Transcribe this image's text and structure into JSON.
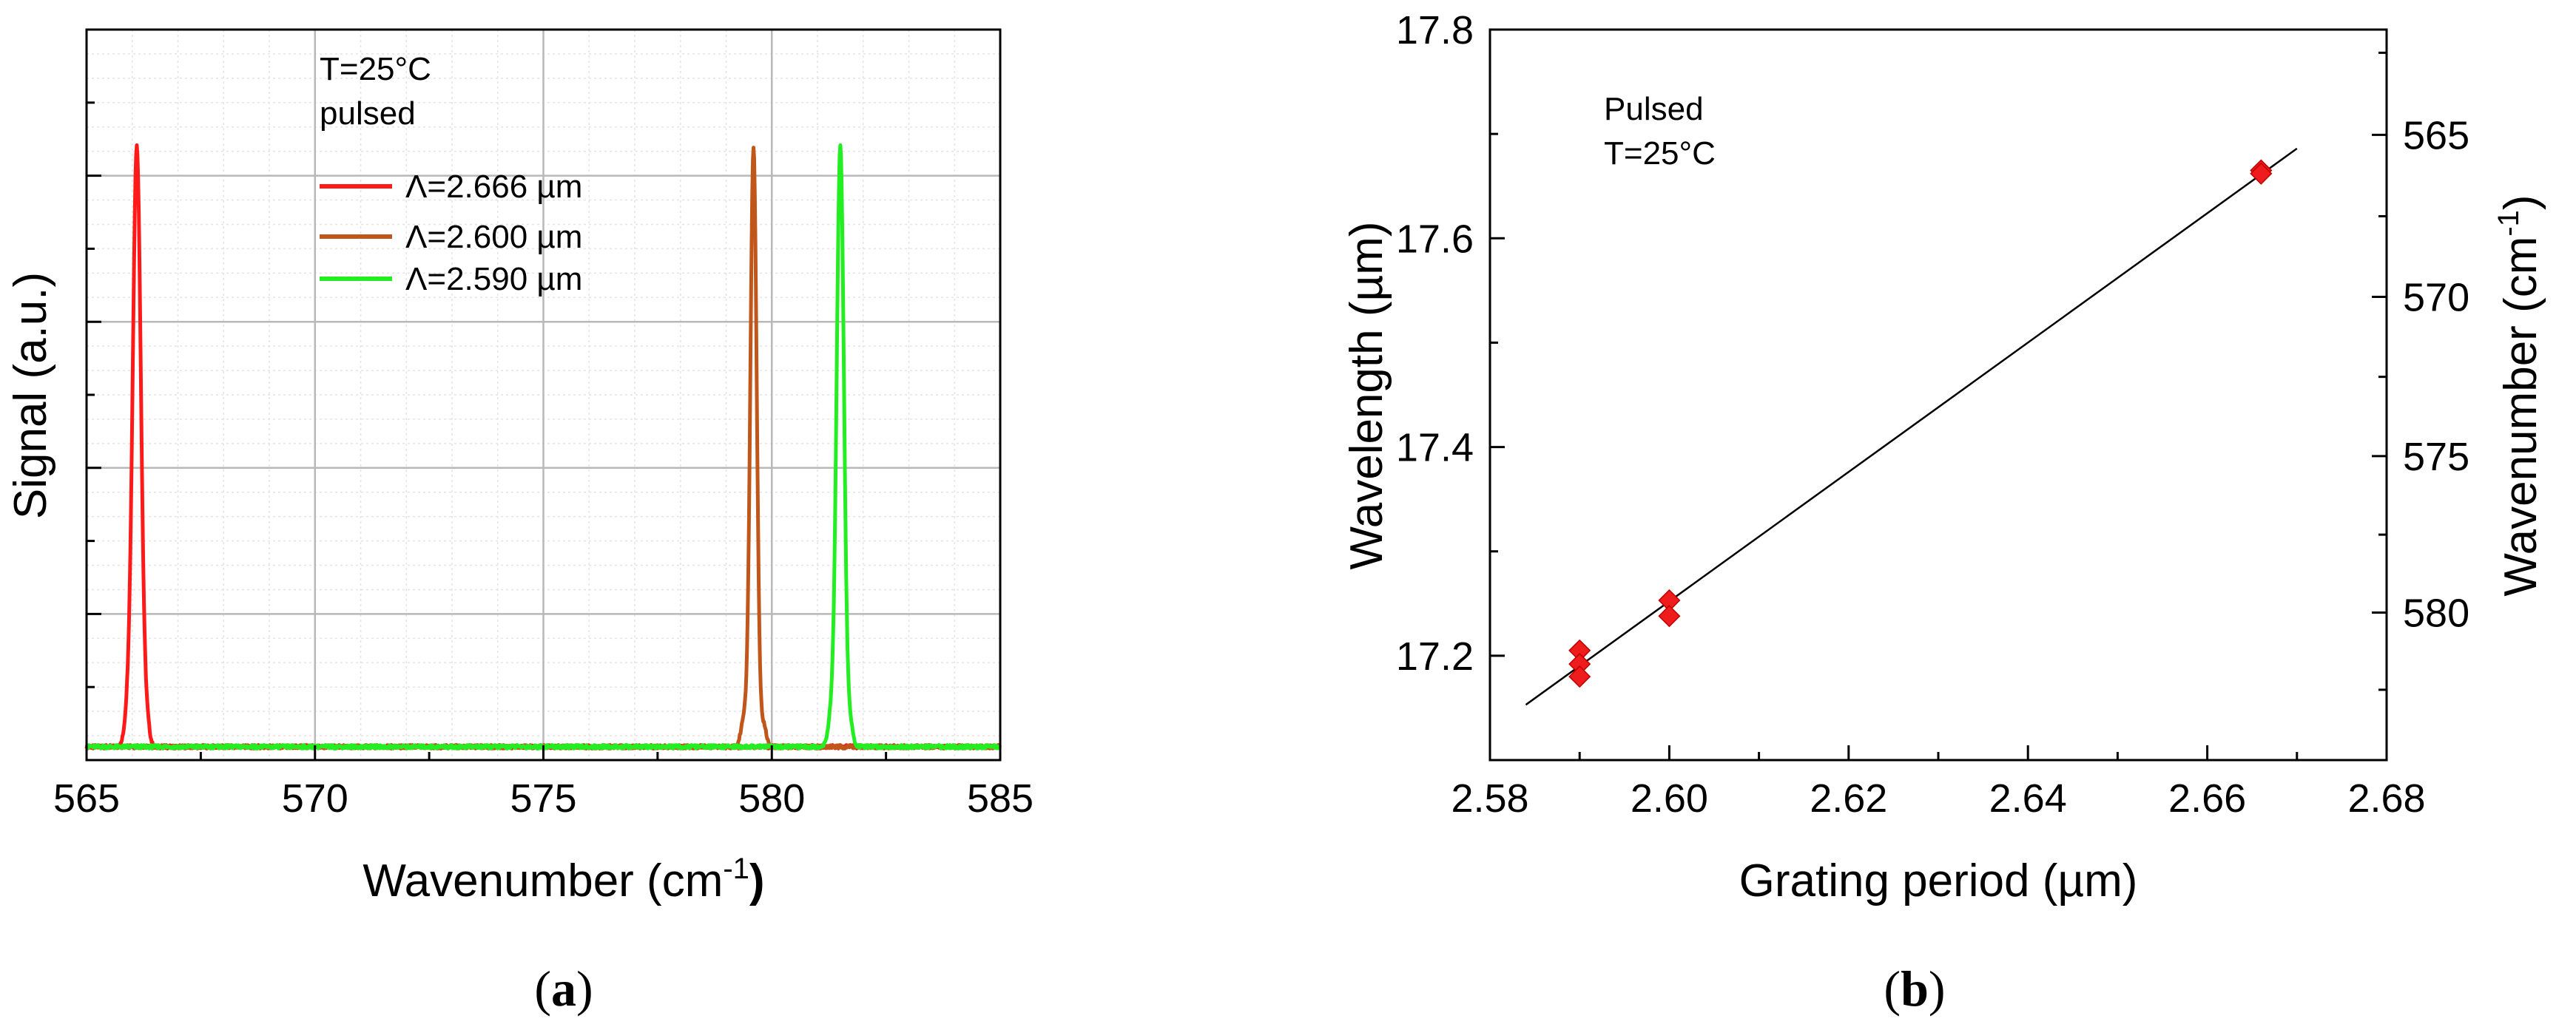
{
  "figure": {
    "panel_a_label": "a",
    "panel_b_label": "b"
  },
  "chart_data": [
    {
      "id": "a",
      "type": "line",
      "title": "",
      "xlabel": "Wavenumber (cm",
      "xlabel_sup": "-1",
      "xlabel_end": ")",
      "ylabel": "Signal (a.u.)",
      "xlim": [
        565,
        585
      ],
      "ylim": [
        0,
        1.1
      ],
      "x_ticks": [
        "565",
        "570",
        "575",
        "580",
        "585"
      ],
      "grid": true,
      "annotations": [
        "T=25°C",
        "pulsed"
      ],
      "legend_position": "upper-left-center",
      "series": [
        {
          "name": "Λ=2.666 µm",
          "color": "#ff1a1a",
          "center": 566.1,
          "width": 0.09,
          "peak": 1.0
        },
        {
          "name": "Λ=2.600 µm",
          "color": "#c0561a",
          "center": 579.6,
          "width": 0.07,
          "peak": 1.0
        },
        {
          "name": "Λ=2.590 µm",
          "color": "#22ee22",
          "center": 581.5,
          "width": 0.08,
          "peak": 1.0
        }
      ]
    },
    {
      "id": "b",
      "type": "scatter",
      "title": "",
      "xlabel": "Grating period (µm)",
      "ylabel": "Wavelength (µm)",
      "y2label": "Wavenumber (cm",
      "y2label_sup": "-1",
      "y2label_end": ")",
      "xlim": [
        2.58,
        2.68
      ],
      "ylim": [
        17.1,
        17.8
      ],
      "x_ticks": [
        "2.58",
        "2.60",
        "2.62",
        "2.64",
        "2.66",
        "2.68"
      ],
      "y_ticks": [
        "17.2",
        "17.4",
        "17.6",
        "17.8"
      ],
      "y2_ticks": [
        "565",
        "570",
        "575",
        "580"
      ],
      "grid": false,
      "annotations": [
        "Pulsed",
        "T=25°C"
      ],
      "points": [
        {
          "x": 2.59,
          "y": 17.205
        },
        {
          "x": 2.59,
          "y": 17.192
        },
        {
          "x": 2.59,
          "y": 17.18
        },
        {
          "x": 2.6,
          "y": 17.253
        },
        {
          "x": 2.6,
          "y": 17.238
        },
        {
          "x": 2.666,
          "y": 17.665
        },
        {
          "x": 2.666,
          "y": 17.662
        }
      ],
      "fit_line": {
        "x_start": 2.584,
        "y_start": 17.153,
        "x_end": 2.67,
        "y_end": 17.686
      },
      "marker_color": "#ee1c1c"
    }
  ]
}
